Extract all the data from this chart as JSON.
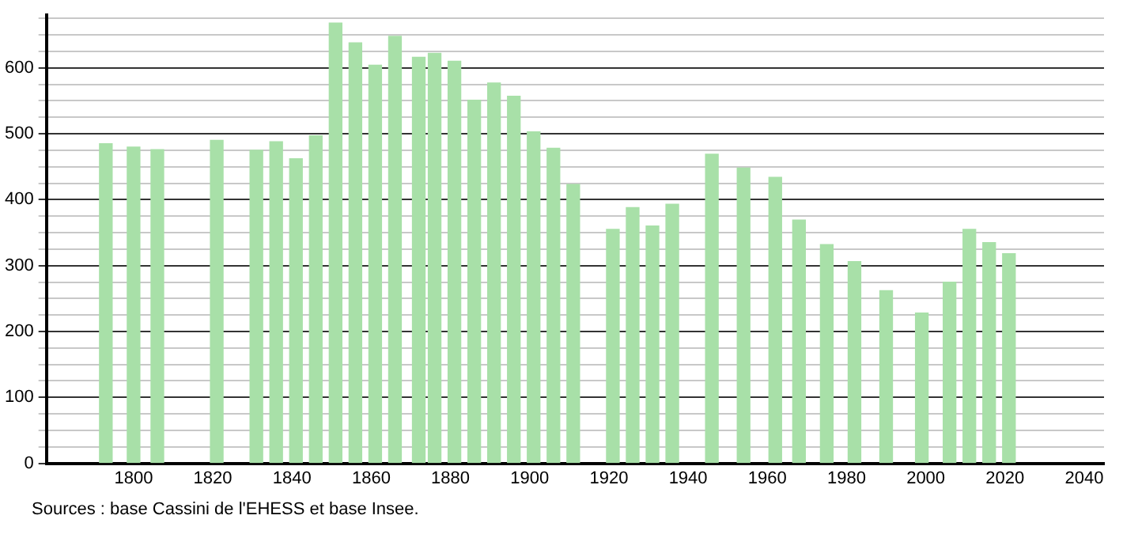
{
  "chart_data": {
    "type": "bar",
    "x": [
      1793,
      1800,
      1806,
      1821,
      1831,
      1836,
      1841,
      1846,
      1851,
      1856,
      1861,
      1866,
      1872,
      1876,
      1881,
      1886,
      1891,
      1896,
      1901,
      1906,
      1911,
      1921,
      1926,
      1931,
      1936,
      1946,
      1954,
      1962,
      1968,
      1975,
      1982,
      1990,
      1999,
      2006,
      2011,
      2016,
      2021
    ],
    "values": [
      485,
      480,
      476,
      490,
      475,
      488,
      462,
      497,
      668,
      638,
      604,
      648,
      616,
      622,
      610,
      551,
      577,
      557,
      503,
      478,
      423,
      355,
      388,
      360,
      393,
      469,
      448,
      434,
      369,
      332,
      306,
      262,
      228,
      275,
      355,
      335,
      318
    ],
    "color": "#a8e0a8",
    "xlim": [
      1778,
      2045
    ],
    "xticks": [
      1800,
      1820,
      1840,
      1860,
      1880,
      1900,
      1920,
      1940,
      1960,
      1980,
      2000,
      2020,
      2040
    ],
    "ylim": [
      0,
      680
    ],
    "yticks": [
      0,
      {
        "value": 25,
        "label": null
      },
      {
        "value": 50,
        "label": null
      },
      {
        "value": 75,
        "label": null
      },
      100,
      {
        "value": 125,
        "label": null
      },
      {
        "value": 150,
        "label": null
      },
      {
        "value": 175,
        "label": null
      },
      200,
      {
        "value": 225,
        "label": null
      },
      {
        "value": 250,
        "label": null
      },
      {
        "value": 275,
        "label": null
      },
      300,
      {
        "value": 325,
        "label": null
      },
      {
        "value": 350,
        "label": null
      },
      {
        "value": 375,
        "label": null
      },
      400,
      {
        "value": 425,
        "label": null
      },
      {
        "value": 450,
        "label": null
      },
      {
        "value": 475,
        "label": null
      },
      500,
      {
        "value": 525,
        "label": null
      },
      {
        "value": 550,
        "label": null
      },
      {
        "value": 575,
        "label": null
      },
      600,
      {
        "value": 625,
        "label": null
      },
      {
        "value": 650,
        "label": null
      },
      {
        "value": 675,
        "label": null
      }
    ],
    "grid": "y",
    "legend": false,
    "annotations": [
      "Sources : base Cassini de l'EHESS et base Insee."
    ]
  }
}
